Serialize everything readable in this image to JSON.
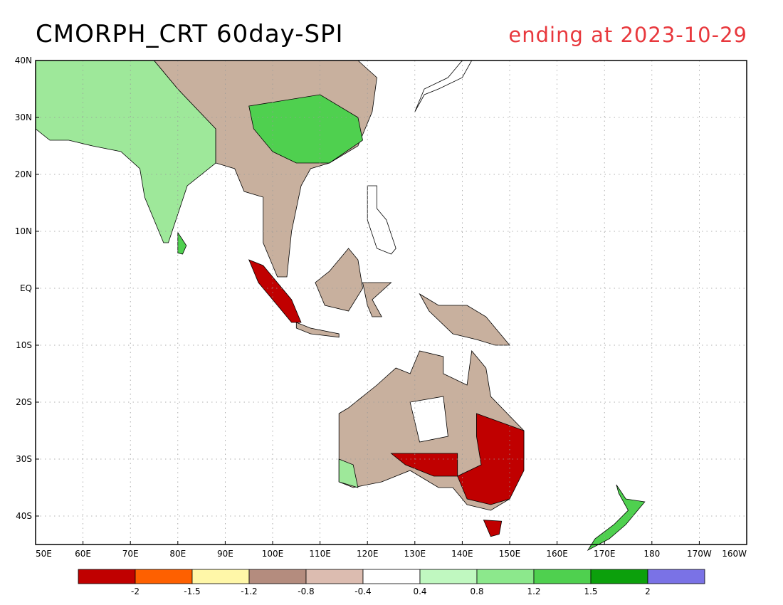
{
  "title": {
    "main": "CMORPH_CRT 60day-SPI",
    "sub": "ending at 2023-10-29",
    "sub_color": "#e8383d"
  },
  "map": {
    "lon_range": [
      50,
      200
    ],
    "lat_range": [
      -45,
      40
    ],
    "lon_ticks": [
      {
        "lon": 50,
        "label": "50E"
      },
      {
        "lon": 60,
        "label": "60E"
      },
      {
        "lon": 70,
        "label": "70E"
      },
      {
        "lon": 80,
        "label": "80E"
      },
      {
        "lon": 90,
        "label": "90E"
      },
      {
        "lon": 100,
        "label": "100E"
      },
      {
        "lon": 110,
        "label": "110E"
      },
      {
        "lon": 120,
        "label": "120E"
      },
      {
        "lon": 130,
        "label": "130E"
      },
      {
        "lon": 140,
        "label": "140E"
      },
      {
        "lon": 150,
        "label": "150E"
      },
      {
        "lon": 160,
        "label": "160E"
      },
      {
        "lon": 170,
        "label": "170E"
      },
      {
        "lon": 180,
        "label": "180"
      },
      {
        "lon": 190,
        "label": "170W"
      },
      {
        "lon": 200,
        "label": "160W"
      }
    ],
    "lat_ticks": [
      {
        "lat": 40,
        "label": "40N"
      },
      {
        "lat": 30,
        "label": "30N"
      },
      {
        "lat": 20,
        "label": "20N"
      },
      {
        "lat": 10,
        "label": "10N"
      },
      {
        "lat": 0,
        "label": "EQ"
      },
      {
        "lat": -10,
        "label": "10S"
      },
      {
        "lat": -20,
        "label": "20S"
      },
      {
        "lat": -30,
        "label": "30S"
      },
      {
        "lat": -40,
        "label": "40S"
      }
    ],
    "regions": [
      {
        "name": "south-asia",
        "fill": "#9ee89a",
        "points": [
          [
            50,
            40
          ],
          [
            75,
            40
          ],
          [
            80,
            35
          ],
          [
            88,
            28
          ],
          [
            88,
            22
          ],
          [
            82,
            18
          ],
          [
            80,
            13
          ],
          [
            78,
            8
          ],
          [
            77,
            8
          ],
          [
            73,
            16
          ],
          [
            72,
            21
          ],
          [
            68,
            24
          ],
          [
            62,
            25
          ],
          [
            57,
            26
          ],
          [
            53,
            26
          ],
          [
            50,
            28
          ]
        ]
      },
      {
        "name": "east-asia",
        "fill": "#c8b09e",
        "points": [
          [
            75,
            40
          ],
          [
            118,
            40
          ],
          [
            122,
            37
          ],
          [
            121,
            31
          ],
          [
            118,
            25
          ],
          [
            112,
            22
          ],
          [
            108,
            21
          ],
          [
            106,
            18
          ],
          [
            104,
            10
          ],
          [
            103,
            2
          ],
          [
            101,
            2
          ],
          [
            98,
            8
          ],
          [
            98,
            16
          ],
          [
            94,
            17
          ],
          [
            92,
            21
          ],
          [
            88,
            22
          ],
          [
            88,
            28
          ],
          [
            80,
            35
          ]
        ]
      },
      {
        "name": "china-south-wet",
        "fill": "#4fd04f",
        "points": [
          [
            95,
            32
          ],
          [
            110,
            34
          ],
          [
            118,
            30
          ],
          [
            119,
            26
          ],
          [
            112,
            22
          ],
          [
            105,
            22
          ],
          [
            100,
            24
          ],
          [
            96,
            28
          ]
        ]
      },
      {
        "name": "japan",
        "fill": "#ffffff",
        "points": [
          [
            130,
            31
          ],
          [
            132,
            34
          ],
          [
            135,
            35
          ],
          [
            140,
            37
          ],
          [
            142,
            40
          ],
          [
            140,
            40
          ],
          [
            137,
            37
          ],
          [
            132,
            35
          ]
        ]
      },
      {
        "name": "sumatra",
        "fill": "#c00000",
        "points": [
          [
            95,
            5
          ],
          [
            98,
            4
          ],
          [
            104,
            -2
          ],
          [
            106,
            -6
          ],
          [
            104,
            -6
          ],
          [
            101,
            -3
          ],
          [
            97,
            1
          ]
        ]
      },
      {
        "name": "borneo",
        "fill": "#c8b09e",
        "points": [
          [
            109,
            1
          ],
          [
            111,
            -3
          ],
          [
            116,
            -4
          ],
          [
            119,
            0
          ],
          [
            118,
            5
          ],
          [
            116,
            7
          ],
          [
            112,
            3
          ]
        ]
      },
      {
        "name": "java",
        "fill": "#c8b09e",
        "points": [
          [
            105,
            -6
          ],
          [
            108,
            -7
          ],
          [
            114,
            -8
          ],
          [
            114,
            -8.6
          ],
          [
            108,
            -8
          ],
          [
            105,
            -7
          ]
        ]
      },
      {
        "name": "philippines",
        "fill": "#ffffff",
        "points": [
          [
            120,
            18
          ],
          [
            122,
            18
          ],
          [
            122,
            14
          ],
          [
            124,
            12
          ],
          [
            126,
            7
          ],
          [
            125,
            6
          ],
          [
            122,
            7
          ],
          [
            120,
            12
          ]
        ]
      },
      {
        "name": "sulawesi",
        "fill": "#c8b09e",
        "points": [
          [
            119,
            1
          ],
          [
            125,
            1
          ],
          [
            121,
            -2
          ],
          [
            123,
            -5
          ],
          [
            121,
            -5
          ],
          [
            120,
            -3
          ]
        ]
      },
      {
        "name": "new-guinea",
        "fill": "#c8b09e",
        "points": [
          [
            131,
            -1
          ],
          [
            135,
            -3
          ],
          [
            141,
            -3
          ],
          [
            145,
            -5
          ],
          [
            150,
            -10
          ],
          [
            147,
            -10
          ],
          [
            143,
            -9
          ],
          [
            138,
            -8
          ],
          [
            133,
            -4
          ]
        ]
      },
      {
        "name": "australia",
        "fill": "#c8b09e",
        "points": [
          [
            114,
            -22
          ],
          [
            114,
            -34
          ],
          [
            117,
            -35
          ],
          [
            123,
            -34
          ],
          [
            129,
            -32
          ],
          [
            135,
            -35
          ],
          [
            138,
            -35
          ],
          [
            141,
            -38
          ],
          [
            146,
            -39
          ],
          [
            150,
            -37
          ],
          [
            153,
            -30
          ],
          [
            153,
            -25
          ],
          [
            146,
            -19
          ],
          [
            145,
            -14
          ],
          [
            142,
            -11
          ],
          [
            141,
            -17
          ],
          [
            136,
            -15
          ],
          [
            136,
            -12
          ],
          [
            131,
            -11
          ],
          [
            129,
            -15
          ],
          [
            126,
            -14
          ],
          [
            122,
            -17
          ],
          [
            116,
            -21
          ]
        ]
      },
      {
        "name": "aus-southeast-dry",
        "fill": "#c00000",
        "points": [
          [
            143,
            -22
          ],
          [
            153,
            -25
          ],
          [
            153,
            -32
          ],
          [
            150,
            -37
          ],
          [
            146,
            -38
          ],
          [
            141,
            -37
          ],
          [
            139,
            -33
          ],
          [
            144,
            -31
          ],
          [
            143,
            -26
          ]
        ]
      },
      {
        "name": "aus-south-dry",
        "fill": "#c00000",
        "points": [
          [
            125,
            -29
          ],
          [
            139,
            -29
          ],
          [
            139,
            -33
          ],
          [
            134,
            -33
          ],
          [
            128,
            -31
          ]
        ]
      },
      {
        "name": "aus-central-neutral",
        "fill": "#ffffff",
        "points": [
          [
            129,
            -20
          ],
          [
            136,
            -19
          ],
          [
            137,
            -26
          ],
          [
            131,
            -27
          ]
        ]
      },
      {
        "name": "aus-west-wet",
        "fill": "#9ee89a",
        "points": [
          [
            114,
            -30
          ],
          [
            117,
            -31
          ],
          [
            118,
            -35
          ],
          [
            114,
            -34
          ]
        ]
      },
      {
        "name": "tasmania",
        "fill": "#c00000",
        "points": [
          [
            144.5,
            -40.7
          ],
          [
            148.3,
            -40.9
          ],
          [
            147.8,
            -43.2
          ],
          [
            146,
            -43.6
          ]
        ]
      },
      {
        "name": "new-zealand",
        "fill": "#4fd04f",
        "points": [
          [
            172.5,
            -34.5
          ],
          [
            174.5,
            -37
          ],
          [
            178.5,
            -37.5
          ],
          [
            176,
            -40
          ],
          [
            174.5,
            -41.5
          ],
          [
            171,
            -44
          ],
          [
            166.5,
            -46
          ],
          [
            168,
            -44
          ],
          [
            172,
            -41.5
          ],
          [
            175,
            -39
          ],
          [
            173,
            -36
          ]
        ]
      },
      {
        "name": "sri-lanka",
        "fill": "#4fd04f",
        "points": [
          [
            80,
            9.8
          ],
          [
            81.8,
            7.5
          ],
          [
            81,
            6
          ],
          [
            80,
            6.2
          ]
        ]
      }
    ]
  },
  "legend": {
    "swatches": [
      "#c00000",
      "#fe6000",
      "#fff7a8",
      "#b48c7e",
      "#dcbcb0",
      "#ffffff",
      "#c0f8c0",
      "#8ce88c",
      "#4fd04f",
      "#0ca00c",
      "#7a72e6"
    ],
    "labels": [
      "-2",
      "-1.5",
      "-1.2",
      "-0.8",
      "-0.4",
      "0.4",
      "0.8",
      "1.2",
      "1.5",
      "2"
    ]
  }
}
